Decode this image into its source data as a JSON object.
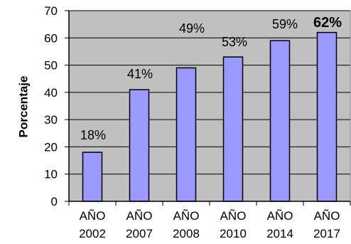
{
  "chart_data": {
    "type": "bar",
    "ylabel": "Porcentaje",
    "categories": [
      "AÑO 2002",
      "AÑO 2007",
      "AÑO 2008",
      "AÑO 2010",
      "AÑO 2014",
      "AÑO 2017"
    ],
    "values": [
      18,
      41,
      49,
      53,
      59,
      62
    ],
    "data_labels": [
      "18%",
      "41%",
      "49%",
      "53%",
      "59%",
      "62%"
    ],
    "ylim": [
      0,
      70
    ],
    "yticks": [
      0,
      10,
      20,
      30,
      40,
      50,
      60,
      70
    ],
    "grid": true
  },
  "colors": {
    "bar_fill": "#9999ff",
    "bar_border": "#000000",
    "plot_background": "#c0c0c0",
    "plot_border": "#808080",
    "gridline": "#000000",
    "axis": "#000000"
  }
}
